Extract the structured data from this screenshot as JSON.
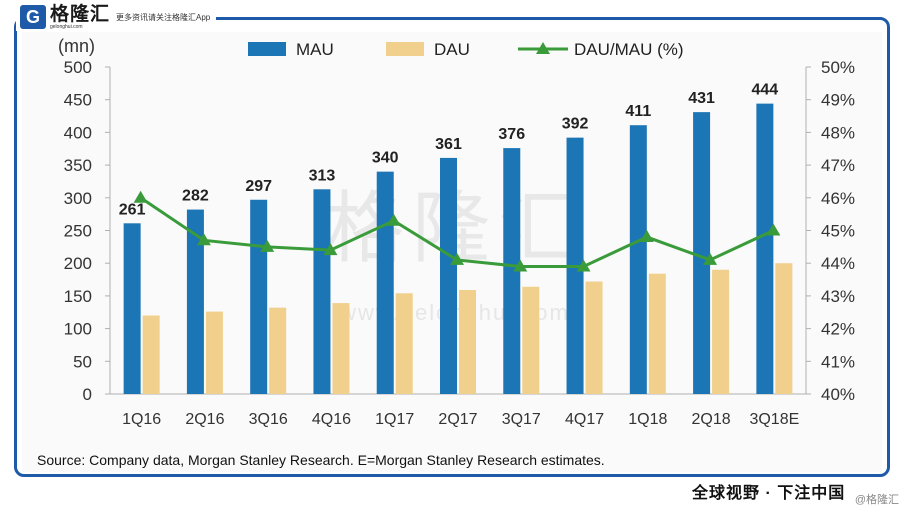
{
  "header": {
    "logo_glyph": "G",
    "logo_name": "格隆汇",
    "logo_url": "gelonghui.com",
    "slogan": "更多资讯请关注格隆汇App"
  },
  "colors": {
    "mau": "#1c75b5",
    "dau": "#f0d08c",
    "ratio": "#3a9b3a",
    "frame": "#1e5aa8"
  },
  "chart_data": {
    "type": "bar",
    "title": "",
    "unit_label": "(mn)",
    "categories": [
      "1Q16",
      "2Q16",
      "3Q16",
      "4Q16",
      "1Q17",
      "2Q17",
      "3Q17",
      "4Q17",
      "1Q18",
      "2Q18",
      "3Q18E"
    ],
    "series": [
      {
        "name": "MAU",
        "type": "bar",
        "axis": "left",
        "values": [
          261,
          282,
          297,
          313,
          340,
          361,
          376,
          392,
          411,
          431,
          444
        ]
      },
      {
        "name": "DAU",
        "type": "bar",
        "axis": "left",
        "values": [
          120,
          126,
          132,
          139,
          154,
          159,
          164,
          172,
          184,
          190,
          200
        ]
      },
      {
        "name": "DAU/MAU (%)",
        "type": "line",
        "axis": "right",
        "values": [
          46.0,
          44.7,
          44.5,
          44.4,
          45.3,
          44.1,
          43.9,
          43.9,
          44.8,
          44.1,
          45.0
        ]
      }
    ],
    "ylim": [
      0,
      500
    ],
    "yticks": [
      "0",
      "50",
      "100",
      "150",
      "200",
      "250",
      "300",
      "350",
      "400",
      "450",
      "500"
    ],
    "y2lim": [
      40,
      50
    ],
    "y2ticks": [
      "40%",
      "41%",
      "42%",
      "43%",
      "44%",
      "45%",
      "46%",
      "47%",
      "48%",
      "49%",
      "50%"
    ],
    "legend_position": "top-center",
    "grid": false,
    "watermark_text": "格隆汇",
    "watermark_url": "www.gelonghui.com"
  },
  "footer": {
    "source": "Source: Company data, Morgan Stanley Research. E=Morgan Stanley Research estimates.",
    "banner": "全球视野 · 下注中国",
    "watermark": "@格隆汇"
  }
}
